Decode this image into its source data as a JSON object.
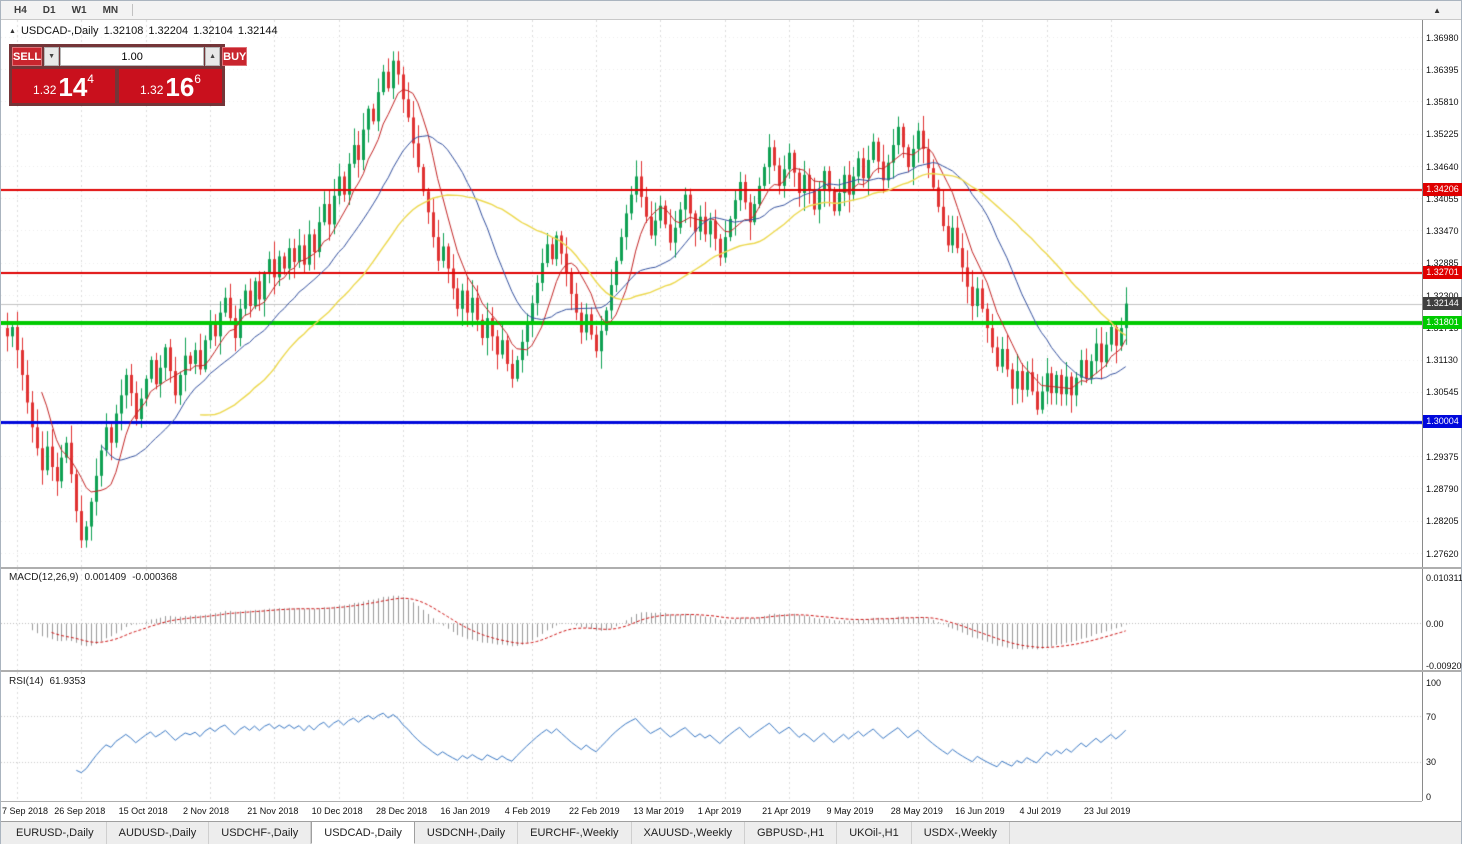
{
  "toolbar": {
    "timeframes": [
      "H4",
      "D1",
      "W1",
      "MN"
    ],
    "scroll_icon": "▲"
  },
  "chart_header": {
    "icon": "▲",
    "symbol": "USDCAD-,Daily",
    "open": "1.32108",
    "high": "1.32204",
    "low": "1.32104",
    "close": "1.32144"
  },
  "trade_panel": {
    "sell_label": "SELL",
    "buy_label": "BUY",
    "volume": "1.00",
    "spin_down": "▼",
    "spin_up": "▲",
    "sell_price": {
      "prefix": "1.32",
      "big": "14",
      "sup": "4"
    },
    "buy_price": {
      "prefix": "1.32",
      "big": "16",
      "sup": "6"
    }
  },
  "chart_data": {
    "type": "candlestick",
    "symbol": "USDCAD",
    "timeframe": "Daily",
    "price_min": 1.2762,
    "price_max": 1.3698,
    "axis_ticks": [
      "1.36980",
      "1.36395",
      "1.35810",
      "1.35225",
      "1.34640",
      "1.34055",
      "1.33470",
      "1.32885",
      "1.32300",
      "1.31715",
      "1.31130",
      "1.30545",
      "1.29960",
      "1.29375",
      "1.28790",
      "1.28205",
      "1.27620"
    ],
    "x_labels": [
      "7 Sep 2018",
      "26 Sep 2018",
      "15 Oct 2018",
      "2 Nov 2018",
      "21 Nov 2018",
      "10 Dec 2018",
      "28 Dec 2018",
      "16 Jan 2019",
      "4 Feb 2019",
      "22 Feb 2019",
      "13 Mar 2019",
      "1 Apr 2019",
      "21 Apr 2019",
      "9 May 2019",
      "28 May 2019",
      "16 Jun 2019",
      "4 Jul 2019",
      "23 Jul 2019"
    ],
    "closes": [
      1.3155,
      1.3172,
      1.313,
      1.3085,
      1.3035,
      1.299,
      1.2952,
      1.2912,
      1.2955,
      1.2918,
      1.2892,
      1.2935,
      1.2962,
      1.2905,
      1.2838,
      1.2785,
      1.281,
      1.2855,
      1.2902,
      1.2948,
      1.299,
      1.2962,
      1.3015,
      1.3048,
      1.3085,
      1.3052,
      1.3005,
      1.3042,
      1.3078,
      1.3112,
      1.3068,
      1.3098,
      1.3135,
      1.3092,
      1.3048,
      1.3085,
      1.312,
      1.3105,
      1.313,
      1.3095,
      1.3148,
      1.3182,
      1.3155,
      1.3198,
      1.3225,
      1.3188,
      1.3152,
      1.3205,
      1.3238,
      1.321,
      1.3255,
      1.3222,
      1.3268,
      1.3295,
      1.3262,
      1.33,
      1.3278,
      1.3315,
      1.329,
      1.332,
      1.3285,
      1.334,
      1.3308,
      1.3362,
      1.3395,
      1.3358,
      1.341,
      1.3445,
      1.3412,
      1.3468,
      1.3502,
      1.3475,
      1.353,
      1.3568,
      1.3545,
      1.3598,
      1.3635,
      1.3605,
      1.3655,
      1.363,
      1.3585,
      1.3552,
      1.3505,
      1.3462,
      1.3418,
      1.338,
      1.3335,
      1.3292,
      1.3318,
      1.3278,
      1.3242,
      1.3205,
      1.3238,
      1.3198,
      1.3225,
      1.3185,
      1.3152,
      1.3188,
      1.3155,
      1.3122,
      1.3148,
      1.3105,
      1.3078,
      1.3112,
      1.3145,
      1.318,
      1.3215,
      1.3252,
      1.3288,
      1.3322,
      1.3295,
      1.3338,
      1.3305,
      1.327,
      1.3232,
      1.3198,
      1.3162,
      1.3195,
      1.3158,
      1.3128,
      1.3165,
      1.3202,
      1.3248,
      1.3292,
      1.3335,
      1.3378,
      1.3412,
      1.3445,
      1.3408,
      1.3372,
      1.3338,
      1.3365,
      1.3392,
      1.3358,
      1.3325,
      1.3352,
      1.3385,
      1.3412,
      1.3378,
      1.3345,
      1.3372,
      1.334,
      1.3365,
      1.3332,
      1.3298,
      1.3335,
      1.3368,
      1.3402,
      1.3435,
      1.3398,
      1.3362,
      1.3395,
      1.3428,
      1.3462,
      1.3498,
      1.3465,
      1.3428,
      1.3458,
      1.3488,
      1.3452,
      1.3415,
      1.3448,
      1.342,
      1.3385,
      1.342,
      1.3455,
      1.3418,
      1.3382,
      1.3415,
      1.3448,
      1.3412,
      1.3445,
      1.3478,
      1.3442,
      1.3475,
      1.3508,
      1.3472,
      1.3438,
      1.347,
      1.3502,
      1.3535,
      1.3498,
      1.3462,
      1.3495,
      1.3528,
      1.3495,
      1.346,
      1.3425,
      1.339,
      1.3355,
      1.332,
      1.3352,
      1.3315,
      1.328,
      1.3245,
      1.321,
      1.3242,
      1.3205,
      1.317,
      1.3135,
      1.31,
      1.3132,
      1.3095,
      1.306,
      1.3092,
      1.3058,
      1.309,
      1.3055,
      1.3022,
      1.3055,
      1.3088,
      1.3052,
      1.3085,
      1.305,
      1.3082,
      1.3048,
      1.308,
      1.3112,
      1.3078,
      1.311,
      1.3142,
      1.3108,
      1.314,
      1.3172,
      1.3138,
      1.317,
      1.32144
    ],
    "levels": [
      {
        "price": 1.34206,
        "label": "1.34206",
        "color": "#df0000",
        "width": 2
      },
      {
        "price": 1.32701,
        "label": "1.32701",
        "color": "#df0000",
        "width": 2
      },
      {
        "price": 1.31801,
        "label": "1.31801",
        "color": "#00ca00",
        "width": 4
      },
      {
        "price": 1.30004,
        "label": "1.30004",
        "color": "#0008dc",
        "width": 3
      }
    ],
    "current_price": {
      "value": 1.32144,
      "label": "1.32144",
      "color": "#3f3f3f"
    },
    "candle_up_color": "#0fa153",
    "candle_down_color": "#e03232",
    "ma_colors": {
      "fast": "#c22424",
      "mid": "#33509e",
      "slow": "#ecd84e"
    },
    "macd": {
      "header": "MACD(12,26,9)",
      "value": "0.001409",
      "signal": "-0.000368",
      "fast": 12,
      "slow": 26,
      "signal_period": 9,
      "scale_max": "0.010311",
      "scale_zero": "0.00",
      "scale_min": "-0.009203",
      "hist_color": "#9a9a9a",
      "signal_color": "#cc1313"
    },
    "rsi": {
      "header": "RSI(14)",
      "value": "61.9353",
      "period": 14,
      "upper": 70,
      "lower": 30,
      "scale": [
        "100",
        "70",
        "30",
        "0"
      ],
      "line_color": "#3a78c3"
    }
  },
  "bottom_tabs": {
    "active_index": 3,
    "tabs": [
      "EURUSD-,Daily",
      "AUDUSD-,Daily",
      "USDCHF-,Daily",
      "USDCAD-,Daily",
      "USDCNH-,Daily",
      "EURCHF-,Weekly",
      "XAUUSD-,Weekly",
      "GBPUSD-,H1",
      "UKOil-,H1",
      "USDX-,Weekly"
    ]
  }
}
